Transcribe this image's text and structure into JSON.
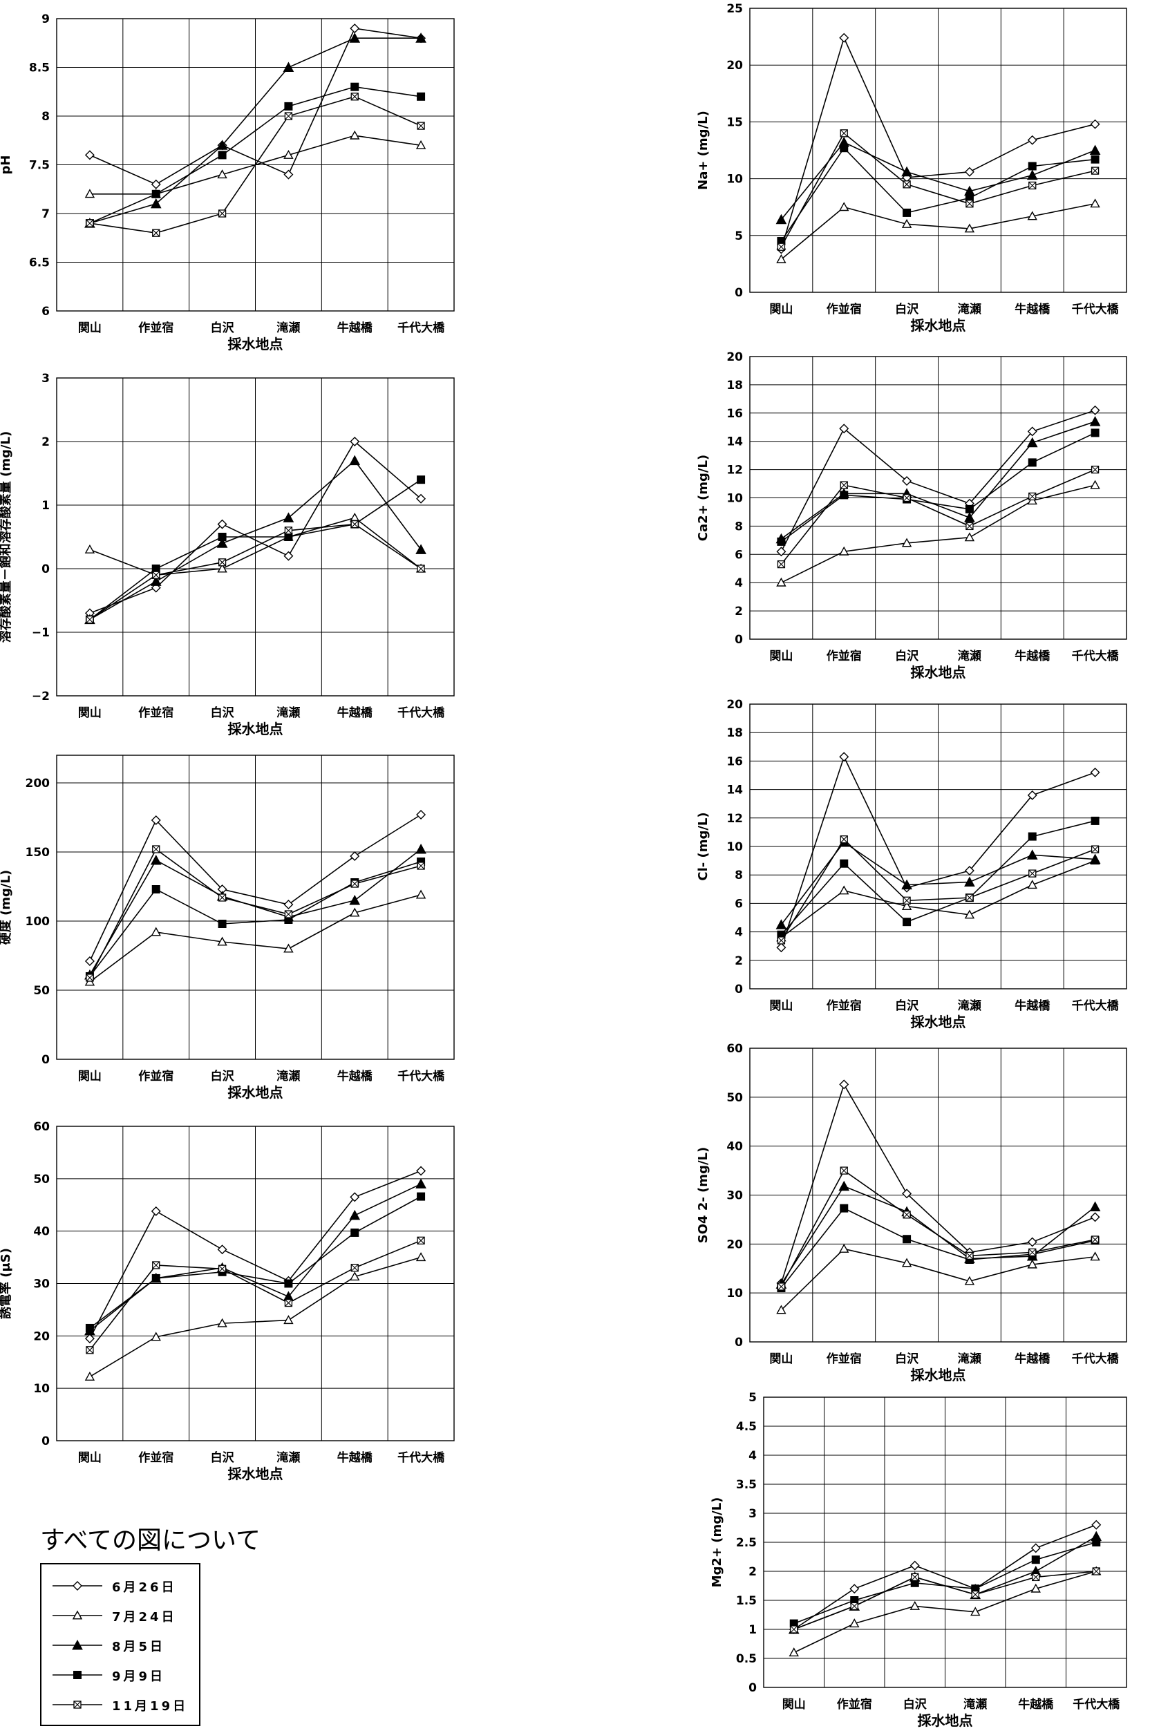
{
  "legend": {
    "note": "すべての図について",
    "series_names": [
      "6月26日",
      "7月24日",
      "8月5日",
      "9月9日",
      "11月19日"
    ]
  },
  "series_styles": [
    "diamond-open",
    "triangle-open",
    "triangle-filled",
    "square-filled",
    "square-x"
  ],
  "chart_data": [
    {
      "type": "line",
      "ylabel": "pH",
      "xlabel": "採水地点",
      "categories": [
        "関山",
        "作並宿",
        "白沢",
        "滝瀬",
        "牛越橋",
        "千代大橋"
      ],
      "ylim": [
        6,
        9
      ],
      "yticks": [
        6,
        6.5,
        7,
        7.5,
        8,
        8.5,
        9
      ],
      "ytick_labels": [
        "6",
        "6.5",
        "7",
        "7.5",
        "8",
        "8.5",
        "9"
      ],
      "grid": true,
      "series": [
        {
          "name": "6月26日",
          "values": [
            7.6,
            7.3,
            7.7,
            7.4,
            8.9,
            8.8
          ]
        },
        {
          "name": "7月24日",
          "values": [
            7.2,
            7.2,
            7.4,
            7.6,
            7.8,
            7.7
          ]
        },
        {
          "name": "8月5日",
          "values": [
            6.9,
            7.1,
            7.7,
            8.5,
            8.8,
            8.8
          ]
        },
        {
          "name": "9月9日",
          "values": [
            6.9,
            7.2,
            7.6,
            8.1,
            8.3,
            8.2
          ]
        },
        {
          "name": "11月19日",
          "values": [
            6.9,
            6.8,
            7.0,
            8.0,
            8.2,
            7.9
          ]
        }
      ]
    },
    {
      "type": "line",
      "ylabel": "溶存酸素量－飽和溶存酸素量 (mg/L)",
      "xlabel": "採水地点",
      "categories": [
        "関山",
        "作並宿",
        "白沢",
        "滝瀬",
        "牛越橋",
        "千代大橋"
      ],
      "ylim": [
        -2,
        3
      ],
      "yticks": [
        -2,
        -1,
        0,
        1,
        2,
        3
      ],
      "ytick_labels": [
        "−2",
        "−1",
        "0",
        "1",
        "2",
        "3"
      ],
      "grid": true,
      "series": [
        {
          "name": "6月26日",
          "values": [
            -0.7,
            -0.3,
            0.7,
            0.2,
            2.0,
            1.1
          ]
        },
        {
          "name": "7月24日",
          "values": [
            0.3,
            -0.1,
            0.0,
            0.5,
            0.8,
            0.0
          ]
        },
        {
          "name": "8月5日",
          "values": [
            -0.8,
            -0.2,
            0.4,
            0.8,
            1.7,
            0.3
          ]
        },
        {
          "name": "9月9日",
          "values": [
            -0.8,
            0.0,
            0.5,
            0.5,
            0.7,
            1.4
          ]
        },
        {
          "name": "11月19日",
          "values": [
            -0.8,
            -0.1,
            0.1,
            0.6,
            0.7,
            0.0
          ]
        }
      ]
    },
    {
      "type": "line",
      "ylabel": "硬度 (mg/L)",
      "xlabel": "採水地点",
      "categories": [
        "関山",
        "作並宿",
        "白沢",
        "滝瀬",
        "牛越橋",
        "千代大橋"
      ],
      "ylim": [
        0,
        220
      ],
      "yticks": [
        0,
        50,
        100,
        150,
        200
      ],
      "ytick_labels": [
        "0",
        "50",
        "100",
        "150",
        "200"
      ],
      "grid": true,
      "series": [
        {
          "name": "6月26日",
          "values": [
            71,
            173,
            123,
            112,
            147,
            177
          ]
        },
        {
          "name": "7月24日",
          "values": [
            56,
            92,
            85,
            80,
            106,
            119
          ]
        },
        {
          "name": "8月5日",
          "values": [
            61,
            144,
            118,
            103,
            115,
            152
          ]
        },
        {
          "name": "9月9日",
          "values": [
            60,
            123,
            98,
            101,
            128,
            143
          ]
        },
        {
          "name": "11月19日",
          "values": [
            59,
            152,
            117,
            105,
            127,
            140
          ]
        }
      ]
    },
    {
      "type": "line",
      "ylabel": "誘電率 (μS)",
      "xlabel": "採水地点",
      "categories": [
        "関山",
        "作並宿",
        "白沢",
        "滝瀬",
        "牛越橋",
        "千代大橋"
      ],
      "ylim": [
        0,
        60
      ],
      "yticks": [
        0,
        10,
        20,
        30,
        40,
        50,
        60
      ],
      "ytick_labels": [
        "0",
        "10",
        "20",
        "30",
        "40",
        "50",
        "60"
      ],
      "grid": true,
      "series": [
        {
          "name": "6月26日",
          "values": [
            19.5,
            43.8,
            36.5,
            30.5,
            46.5,
            51.5
          ]
        },
        {
          "name": "7月24日",
          "values": [
            12.2,
            19.8,
            22.4,
            23.0,
            31.3,
            35.0
          ]
        },
        {
          "name": "8月5日",
          "values": [
            21.0,
            31.0,
            33.0,
            27.5,
            43.0,
            49.0
          ]
        },
        {
          "name": "9月9日",
          "values": [
            21.5,
            31.0,
            32.2,
            30.0,
            39.7,
            46.6
          ]
        },
        {
          "name": "11月19日",
          "values": [
            17.3,
            33.5,
            32.8,
            26.3,
            33.0,
            38.2
          ]
        }
      ]
    },
    {
      "type": "line",
      "ylabel": "Na+ (mg/L)",
      "xlabel": "採水地点",
      "categories": [
        "関山",
        "作並宿",
        "白沢",
        "滝瀬",
        "牛越橋",
        "千代大橋"
      ],
      "ylim": [
        0,
        25
      ],
      "yticks": [
        0,
        5,
        10,
        15,
        20,
        25
      ],
      "ytick_labels": [
        "0",
        "5",
        "10",
        "15",
        "20",
        "25"
      ],
      "grid": true,
      "series": [
        {
          "name": "6月26日",
          "values": [
            3.8,
            22.4,
            10.1,
            10.6,
            13.4,
            14.8
          ]
        },
        {
          "name": "7月24日",
          "values": [
            2.9,
            7.5,
            6.0,
            5.6,
            6.7,
            7.8
          ]
        },
        {
          "name": "8月5日",
          "values": [
            6.4,
            13.2,
            10.6,
            8.9,
            10.3,
            12.5
          ]
        },
        {
          "name": "9月9日",
          "values": [
            4.5,
            12.7,
            7.0,
            8.3,
            11.1,
            11.7
          ]
        },
        {
          "name": "11月19日",
          "values": [
            4.0,
            14.0,
            9.5,
            7.8,
            9.4,
            10.7
          ]
        }
      ]
    },
    {
      "type": "line",
      "ylabel": "Ca2+ (mg/L)",
      "xlabel": "採水地点",
      "categories": [
        "関山",
        "作並宿",
        "白沢",
        "滝瀬",
        "牛越橋",
        "千代大橋"
      ],
      "ylim": [
        0,
        20
      ],
      "yticks": [
        0,
        2,
        4,
        6,
        8,
        10,
        12,
        14,
        16,
        18,
        20
      ],
      "ytick_labels": [
        "0",
        "2",
        "4",
        "6",
        "8",
        "10",
        "12",
        "14",
        "16",
        "18",
        "20"
      ],
      "grid": true,
      "series": [
        {
          "name": "6月26日",
          "values": [
            6.2,
            14.9,
            11.2,
            9.6,
            14.7,
            16.2
          ]
        },
        {
          "name": "7月24日",
          "values": [
            4.0,
            6.2,
            6.8,
            7.2,
            9.8,
            10.9
          ]
        },
        {
          "name": "8月5日",
          "values": [
            7.1,
            10.3,
            10.3,
            8.6,
            13.9,
            15.4
          ]
        },
        {
          "name": "9月9日",
          "values": [
            6.9,
            10.2,
            9.9,
            9.2,
            12.5,
            14.6
          ]
        },
        {
          "name": "11月19日",
          "values": [
            5.3,
            10.9,
            10.0,
            8.0,
            10.1,
            12.0
          ]
        }
      ]
    },
    {
      "type": "line",
      "ylabel": "Cl- (mg/L)",
      "xlabel": "採水地点",
      "categories": [
        "関山",
        "作並宿",
        "白沢",
        "滝瀬",
        "牛越橋",
        "千代大橋"
      ],
      "ylim": [
        0,
        20
      ],
      "yticks": [
        0,
        2,
        4,
        6,
        8,
        10,
        12,
        14,
        16,
        18,
        20
      ],
      "ytick_labels": [
        "0",
        "2",
        "4",
        "6",
        "8",
        "10",
        "12",
        "14",
        "16",
        "18",
        "20"
      ],
      "grid": true,
      "series": [
        {
          "name": "6月26日",
          "values": [
            2.9,
            16.3,
            7.1,
            8.3,
            13.6,
            15.2
          ]
        },
        {
          "name": "7月24日",
          "values": [
            3.6,
            6.9,
            5.8,
            5.2,
            7.3,
            9.0
          ]
        },
        {
          "name": "8月5日",
          "values": [
            4.5,
            10.3,
            7.3,
            7.5,
            9.4,
            9.1
          ]
        },
        {
          "name": "9月9日",
          "values": [
            3.8,
            8.8,
            4.7,
            6.4,
            10.7,
            11.8
          ]
        },
        {
          "name": "11月19日",
          "values": [
            3.4,
            10.5,
            6.2,
            6.4,
            8.1,
            9.8
          ]
        }
      ]
    },
    {
      "type": "line",
      "ylabel": "SO4 2- (mg/L)",
      "xlabel": "採水地点",
      "categories": [
        "関山",
        "作並宿",
        "白沢",
        "滝瀬",
        "牛越橋",
        "千代大橋"
      ],
      "ylim": [
        0,
        60
      ],
      "yticks": [
        0,
        10,
        20,
        30,
        40,
        50,
        60
      ],
      "ytick_labels": [
        "0",
        "10",
        "20",
        "30",
        "40",
        "50",
        "60"
      ],
      "grid": true,
      "series": [
        {
          "name": "6月26日",
          "values": [
            12.0,
            52.6,
            30.3,
            18.3,
            20.4,
            25.5
          ]
        },
        {
          "name": "7月24日",
          "values": [
            6.5,
            19.0,
            16.1,
            12.4,
            15.8,
            17.4
          ]
        },
        {
          "name": "8月5日",
          "values": [
            11.8,
            31.8,
            26.6,
            17.0,
            17.5,
            27.6
          ]
        },
        {
          "name": "9月9日",
          "values": [
            11.0,
            27.3,
            21.0,
            16.8,
            17.9,
            20.7
          ]
        },
        {
          "name": "11月19日",
          "values": [
            11.3,
            35.0,
            26.0,
            17.6,
            18.3,
            20.9
          ]
        }
      ]
    },
    {
      "type": "line",
      "ylabel": "Mg2+ (mg/L)",
      "xlabel": "採水地点",
      "categories": [
        "関山",
        "作並宿",
        "白沢",
        "滝瀬",
        "牛越橋",
        "千代大橋"
      ],
      "ylim": [
        0,
        5
      ],
      "yticks": [
        0,
        0.5,
        1,
        1.5,
        2,
        2.5,
        3,
        3.5,
        4,
        4.5,
        5
      ],
      "ytick_labels": [
        "0",
        "0.5",
        "1",
        "1.5",
        "2",
        "2.5",
        "3",
        "3.5",
        "4",
        "4.5",
        "5"
      ],
      "grid": true,
      "series": [
        {
          "name": "6月26日",
          "values": [
            1.0,
            1.7,
            2.1,
            1.7,
            2.4,
            2.8
          ]
        },
        {
          "name": "7月24日",
          "values": [
            0.6,
            1.1,
            1.4,
            1.3,
            1.7,
            2.0
          ]
        },
        {
          "name": "8月5日",
          "values": [
            1.0,
            1.4,
            1.9,
            1.6,
            2.0,
            2.6
          ]
        },
        {
          "name": "9月9日",
          "values": [
            1.1,
            1.5,
            1.8,
            1.7,
            2.2,
            2.5
          ]
        },
        {
          "name": "11月19日",
          "values": [
            1.0,
            1.4,
            1.9,
            1.6,
            1.9,
            2.0
          ]
        }
      ]
    }
  ]
}
